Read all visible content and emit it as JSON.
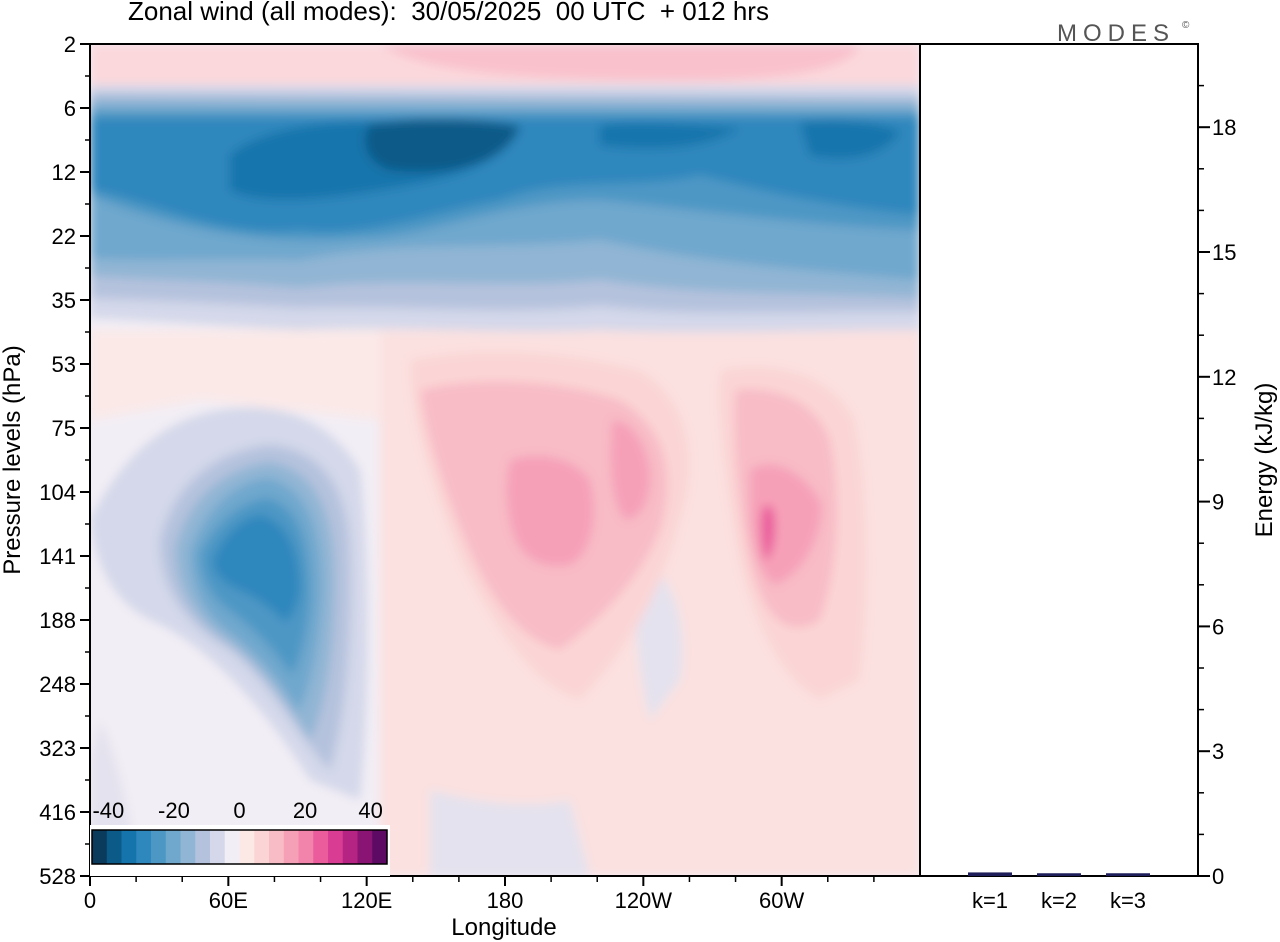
{
  "title": "Zonal wind (all modes):  30/05/2025  00 UTC  + 012 hrs",
  "brand": "MODES",
  "brand_mark": "©",
  "chart_data": [
    {
      "type": "heatmap",
      "xlabel": "Longitude",
      "ylabel": "Pressure levels (hPa)",
      "x_ticks": [
        "0",
        "60E",
        "120E",
        "180",
        "120W",
        "60W"
      ],
      "y_ticks": [
        "2",
        "6",
        "12",
        "22",
        "35",
        "53",
        "75",
        "104",
        "141",
        "188",
        "248",
        "323",
        "416",
        "528"
      ],
      "colorbar": {
        "tick_labels": [
          "-40",
          "-20",
          "0",
          "20",
          "40"
        ],
        "range": [
          -45,
          45
        ],
        "colors": [
          "#0a3b5c",
          "#0c5a88",
          "#1574ac",
          "#2e87bd",
          "#4d97c5",
          "#6fa7cd",
          "#91b5d4",
          "#b5c2dd",
          "#d4d8ea",
          "#f2eef5",
          "#fce9e6",
          "#fbd5d6",
          "#f8bcc6",
          "#f6a0b8",
          "#f283ab",
          "#ea5c9c",
          "#d93c93",
          "#b52383",
          "#8a1474",
          "#5c0a63"
        ]
      },
      "features": [
        {
          "name": "stratospheric easterly jet",
          "longitude_range": [
            "0",
            "360"
          ],
          "level_range_hPa": [
            7,
            25
          ],
          "peak_value": -45
        },
        {
          "name": "upper easterlies",
          "longitude_range": [
            "0",
            "360"
          ],
          "level_range_hPa": [
            25,
            38
          ],
          "peak_value": -20
        },
        {
          "name": "upper westerlies",
          "longitude_range": [
            "80E",
            "120W"
          ],
          "level_range_hPa": [
            2,
            4
          ],
          "peak_value": 25
        },
        {
          "name": "tropospheric easterly maximum",
          "longitude_range": [
            "30E",
            "120E"
          ],
          "level_range_hPa": [
            90,
            340
          ],
          "peak_value": -35
        },
        {
          "name": "tropospheric westerly maximum",
          "longitude_range": [
            "150E",
            "100W"
          ],
          "level_range_hPa": [
            55,
            260
          ],
          "peak_value": 25
        },
        {
          "name": "tropospheric westerly maximum",
          "longitude_range": [
            "80W",
            "35W"
          ],
          "level_range_hPa": [
            55,
            270
          ],
          "peak_value": 30
        }
      ]
    },
    {
      "type": "bar",
      "categories": [
        "k=1",
        "k=2",
        "k=3"
      ],
      "values": [
        0.05,
        0.03,
        0.03
      ],
      "ylabel": "Energy (kJ/kg)",
      "ylim": [
        0,
        20
      ],
      "y_ticks": [
        "0",
        "3",
        "6",
        "9",
        "12",
        "15",
        "18"
      ]
    }
  ]
}
